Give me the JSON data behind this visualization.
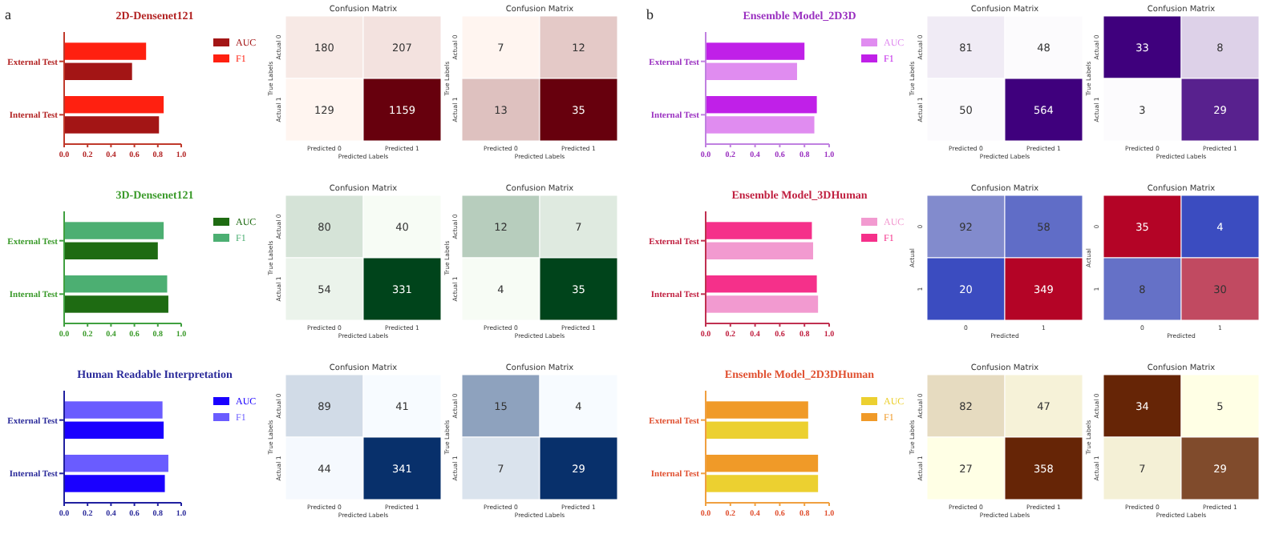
{
  "chart_data": [
    {
      "type": "bar",
      "orientation": "horizontal",
      "title": "2D-Densenet121",
      "annotations": [
        "a"
      ],
      "categories": [
        "External Test",
        "Internal Test"
      ],
      "xlim": [
        0,
        1
      ],
      "xticks": [
        {
          "value": 0,
          "label": "0.0"
        },
        {
          "value": 0.2,
          "label": "0.2"
        },
        {
          "value": 0.4,
          "label": "0.4"
        },
        {
          "value": 0.6,
          "label": "0.6"
        },
        {
          "value": 0.8,
          "label": "0.8"
        },
        {
          "value": 1,
          "label": "1.0"
        }
      ],
      "legend": "right",
      "series": [
        {
          "name": "AUC",
          "color": "#a31515",
          "values": [
            0.58,
            0.81
          ]
        },
        {
          "name": "F1",
          "color": "#ff2010",
          "values": [
            0.7,
            0.85
          ]
        }
      ]
    },
    {
      "type": "heatmap",
      "data_labels": true,
      "title": "Confusion Matrix",
      "xlabel": "Predicted Labels",
      "ylabel": "True Labels",
      "categories": [
        "Predicted 0",
        "Predicted 1"
      ],
      "y_categories": [
        "Actual 0",
        "Actual 1"
      ],
      "colors": [
        "#fff5f0",
        "#67000d"
      ],
      "cells": [
        [
          180,
          207
        ],
        [
          129,
          1159
        ]
      ]
    },
    {
      "type": "heatmap",
      "data_labels": true,
      "title": "Confusion Matrix",
      "xlabel": "Predicted Labels",
      "ylabel": "True Labels",
      "categories": [
        "Predicted 0",
        "Predicted 1"
      ],
      "y_categories": [
        "Actual 0",
        "Actual 1"
      ],
      "colors": [
        "#fff5f0",
        "#67000d"
      ],
      "cells": [
        [
          7,
          12
        ],
        [
          13,
          35
        ]
      ]
    },
    {
      "type": "bar",
      "orientation": "horizontal",
      "title": "Ensemble Model_2D3D",
      "annotations": [
        "b"
      ],
      "categories": [
        "External Test",
        "Internal Test"
      ],
      "xlim": [
        0,
        1
      ],
      "xticks": [
        {
          "value": 0,
          "label": "0.0"
        },
        {
          "value": 0.2,
          "label": "0.2"
        },
        {
          "value": 0.4,
          "label": "0.4"
        },
        {
          "value": 0.6,
          "label": "0.6"
        },
        {
          "value": 0.8,
          "label": "0.8"
        },
        {
          "value": 1,
          "label": "1.0"
        }
      ],
      "legend": "right",
      "series": [
        {
          "name": "AUC",
          "color": "#e08cf0",
          "values": [
            0.74,
            0.88
          ]
        },
        {
          "name": "F1",
          "color": "#c020e8",
          "values": [
            0.8,
            0.9
          ]
        }
      ]
    },
    {
      "type": "heatmap",
      "data_labels": true,
      "title": "Confusion Matrix",
      "xlabel": "Predicted Labels",
      "ylabel": "True Labels",
      "categories": [
        "Predicted 0",
        "Predicted 1"
      ],
      "y_categories": [
        "Actual 0",
        "Actual 1"
      ],
      "colors": [
        "#fcfbfd",
        "#3f007d"
      ],
      "cells": [
        [
          81,
          48
        ],
        [
          50,
          564
        ]
      ]
    },
    {
      "type": "heatmap",
      "data_labels": true,
      "title": "Confusion Matrix",
      "xlabel": "Predicted Labels",
      "ylabel": "True Labels",
      "categories": [
        "Predicted 0",
        "Predicted 1"
      ],
      "y_categories": [
        "Actual 0",
        "Actual 1"
      ],
      "colors": [
        "#fcfbfd",
        "#3f007d"
      ],
      "cells": [
        [
          33,
          8
        ],
        [
          3,
          29
        ]
      ]
    },
    {
      "type": "bar",
      "orientation": "horizontal",
      "title": "3D-Densenet121",
      "categories": [
        "External Test",
        "Internal Test"
      ],
      "xlim": [
        0,
        1
      ],
      "xticks": [
        {
          "value": 0,
          "label": "0.0"
        },
        {
          "value": 0.2,
          "label": "0.2"
        },
        {
          "value": 0.4,
          "label": "0.4"
        },
        {
          "value": 0.6,
          "label": "0.6"
        },
        {
          "value": 0.8,
          "label": "0.8"
        },
        {
          "value": 1,
          "label": "1.0"
        }
      ],
      "legend": "right",
      "series": [
        {
          "name": "AUC",
          "color": "#1e6b12",
          "values": [
            0.8,
            0.89
          ]
        },
        {
          "name": "F1",
          "color": "#4caf72",
          "values": [
            0.85,
            0.88
          ]
        }
      ]
    },
    {
      "type": "heatmap",
      "data_labels": true,
      "title": "Confusion Matrix",
      "xlabel": "Predicted Labels",
      "ylabel": "True Labels",
      "categories": [
        "Predicted 0",
        "Predicted 1"
      ],
      "y_categories": [
        "Actual 0",
        "Actual 1"
      ],
      "colors": [
        "#f7fcf5",
        "#00441b"
      ],
      "cells": [
        [
          80,
          40
        ],
        [
          54,
          331
        ]
      ]
    },
    {
      "type": "heatmap",
      "data_labels": true,
      "title": "Confusion Matrix",
      "xlabel": "Predicted Labels",
      "ylabel": "True Labels",
      "categories": [
        "Predicted 0",
        "Predicted 1"
      ],
      "y_categories": [
        "Actual 0",
        "Actual 1"
      ],
      "colors": [
        "#f7fcf5",
        "#00441b"
      ],
      "cells": [
        [
          12,
          7
        ],
        [
          4,
          35
        ]
      ]
    },
    {
      "type": "bar",
      "orientation": "horizontal",
      "title": "Ensemble Model_3DHuman",
      "categories": [
        "External Test",
        "Internal Test"
      ],
      "xlim": [
        0,
        1
      ],
      "xticks": [
        {
          "value": 0,
          "label": "0.0"
        },
        {
          "value": 0.2,
          "label": "0.2"
        },
        {
          "value": 0.4,
          "label": "0.4"
        },
        {
          "value": 0.6,
          "label": "0.6"
        },
        {
          "value": 0.8,
          "label": "0.8"
        },
        {
          "value": 1,
          "label": "1.0"
        }
      ],
      "legend": "right",
      "series": [
        {
          "name": "AUC",
          "color": "#f29ad0",
          "values": [
            0.87,
            0.91
          ]
        },
        {
          "name": "F1",
          "color": "#f5308a",
          "values": [
            0.86,
            0.9
          ]
        }
      ]
    },
    {
      "type": "heatmap",
      "data_labels": true,
      "title": "Confusion Matrix",
      "xlabel": "Predicted",
      "ylabel": "Actual",
      "categories": [
        "0",
        "1"
      ],
      "y_categories": [
        "0",
        "1"
      ],
      "colors": [
        "#3b4cc0",
        "#dddddd",
        "#b40426"
      ],
      "cells": [
        [
          92,
          58
        ],
        [
          20,
          349
        ]
      ]
    },
    {
      "type": "heatmap",
      "data_labels": true,
      "title": "Confusion Matrix",
      "xlabel": "Predicted",
      "ylabel": "Actual",
      "categories": [
        "0",
        "1"
      ],
      "y_categories": [
        "0",
        "1"
      ],
      "colors": [
        "#3b4cc0",
        "#dddddd",
        "#b40426"
      ],
      "cells": [
        [
          35,
          4
        ],
        [
          8,
          30
        ]
      ]
    },
    {
      "type": "bar",
      "orientation": "horizontal",
      "title": "Human Readable Interpretation",
      "categories": [
        "External Test",
        "Internal Test"
      ],
      "xlim": [
        0,
        1
      ],
      "xticks": [
        {
          "value": 0,
          "label": "0.0"
        },
        {
          "value": 0.2,
          "label": "0.2"
        },
        {
          "value": 0.4,
          "label": "0.4"
        },
        {
          "value": 0.6,
          "label": "0.6"
        },
        {
          "value": 0.8,
          "label": "0.8"
        },
        {
          "value": 1,
          "label": "1.0"
        }
      ],
      "legend": "right",
      "series": [
        {
          "name": "AUC",
          "color": "#1a00ff",
          "values": [
            0.85,
            0.86
          ]
        },
        {
          "name": "F1",
          "color": "#6a5cff",
          "values": [
            0.84,
            0.89
          ]
        }
      ]
    },
    {
      "type": "heatmap",
      "data_labels": true,
      "title": "Confusion Matrix",
      "xlabel": "Predicted Labels",
      "ylabel": "True Labels",
      "categories": [
        "Predicted 0",
        "Predicted 1"
      ],
      "y_categories": [
        "Actual 0",
        "Actual 1"
      ],
      "colors": [
        "#f7fbff",
        "#08306b"
      ],
      "cells": [
        [
          89,
          41
        ],
        [
          44,
          341
        ]
      ]
    },
    {
      "type": "heatmap",
      "data_labels": true,
      "title": "Confusion Matrix",
      "xlabel": "Predicted Labels",
      "ylabel": "True Labels",
      "categories": [
        "Predicted 0",
        "Predicted 1"
      ],
      "y_categories": [
        "Actual 0",
        "Actual 1"
      ],
      "colors": [
        "#f7fbff",
        "#08306b"
      ],
      "cells": [
        [
          15,
          4
        ],
        [
          7,
          29
        ]
      ]
    },
    {
      "type": "bar",
      "orientation": "horizontal",
      "title": "Ensemble Model_2D3DHuman",
      "categories": [
        "External Test",
        "Internal Test"
      ],
      "xlim": [
        0,
        1
      ],
      "xticks": [
        {
          "value": 0,
          "label": "0.0"
        },
        {
          "value": 0.2,
          "label": "0.2"
        },
        {
          "value": 0.4,
          "label": "0.4"
        },
        {
          "value": 0.6,
          "label": "0.6"
        },
        {
          "value": 0.8,
          "label": "0.8"
        },
        {
          "value": 1,
          "label": "1.0"
        }
      ],
      "legend": "right",
      "series": [
        {
          "name": "AUC",
          "color": "#ecd030",
          "values": [
            0.83,
            0.91
          ]
        },
        {
          "name": "F1",
          "color": "#f09a28",
          "values": [
            0.83,
            0.91
          ]
        }
      ]
    },
    {
      "type": "heatmap",
      "data_labels": true,
      "title": "Confusion Matrix",
      "xlabel": "Predicted Labels",
      "ylabel": "True Labels",
      "categories": [
        "Predicted 0",
        "Predicted 1"
      ],
      "y_categories": [
        "Actual 0",
        "Actual 1"
      ],
      "colors": [
        "#ffffe5",
        "#662506"
      ],
      "cells": [
        [
          82,
          47
        ],
        [
          27,
          358
        ]
      ]
    },
    {
      "type": "heatmap",
      "data_labels": true,
      "title": "Confusion Matrix",
      "xlabel": "Predicted Labels",
      "ylabel": "True Labels",
      "categories": [
        "Predicted 0",
        "Predicted 1"
      ],
      "y_categories": [
        "Actual 0",
        "Actual 1"
      ],
      "colors": [
        "#ffffe5",
        "#662506"
      ],
      "cells": [
        [
          34,
          5
        ],
        [
          7,
          29
        ]
      ]
    }
  ]
}
